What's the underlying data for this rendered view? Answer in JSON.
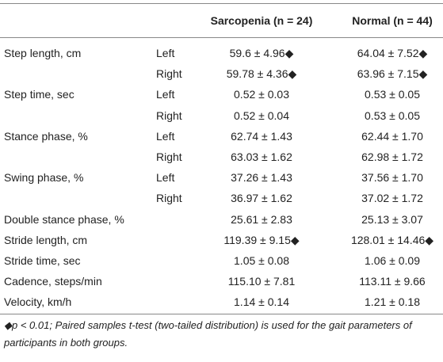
{
  "table": {
    "header": [
      "Sarcopenia (n = 24)",
      "Normal (n = 44)"
    ],
    "rows": [
      [
        "Step length, cm",
        "Left",
        "59.6 ± 4.96◆",
        "64.04 ± 7.52◆"
      ],
      [
        null,
        "Right",
        "59.78 ± 4.36◆",
        "63.96 ± 7.15◆"
      ],
      [
        "Step time, sec",
        "Left",
        "0.52 ± 0.03",
        "0.53 ± 0.05"
      ],
      [
        null,
        "Right",
        "0.52 ± 0.04",
        "0.53 ± 0.05"
      ],
      [
        "Stance phase, %",
        "Left",
        "62.74 ± 1.43",
        "62.44 ± 1.70"
      ],
      [
        null,
        "Right",
        "63.03 ± 1.62",
        "62.98 ± 1.72"
      ],
      [
        "Swing phase, %",
        "Left",
        "37.26 ± 1.43",
        "37.56 ± 1.70"
      ],
      [
        null,
        "Right",
        "36.97 ± 1.62",
        "37.02 ± 1.72"
      ],
      [
        "Double stance phase, %",
        null,
        "25.61 ± 2.83",
        "25.13 ± 3.07"
      ],
      [
        "Stride length, cm",
        null,
        "119.39 ± 9.15◆",
        "128.01 ± 14.46◆"
      ],
      [
        "Stride time, sec",
        null,
        "1.05 ± 0.08",
        "1.06 ± 0.09"
      ],
      [
        "Cadence, steps/min",
        null,
        "115.10 ± 7.81",
        "113.11 ± 9.66"
      ],
      [
        "Velocity, km/h",
        null,
        "1.14 ± 0.14",
        "1.21 ± 0.18"
      ]
    ],
    "footnote": "◆p < 0.01; Paired samples t-test (two-tailed distribution) is used for the gait parameters of participants in both groups."
  }
}
